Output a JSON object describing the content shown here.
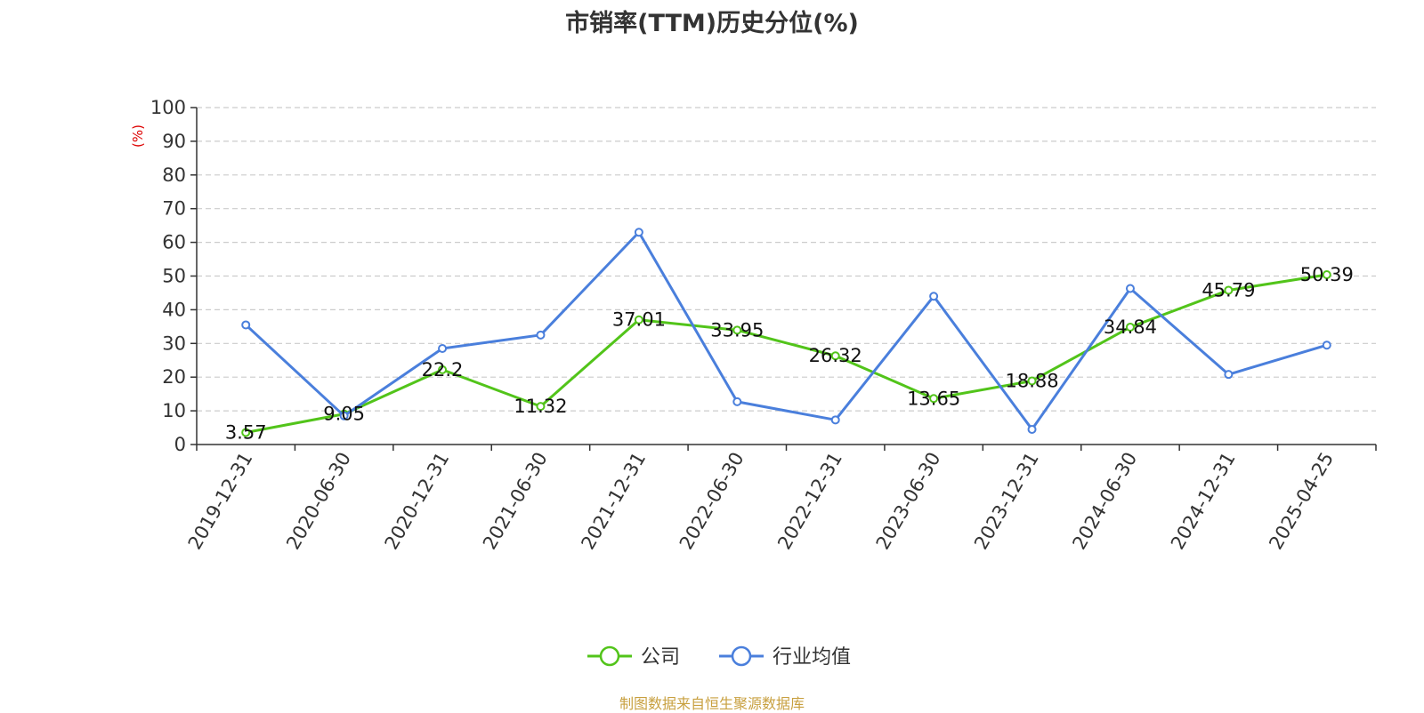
{
  "chart_data": {
    "type": "line",
    "title": "市销率(TTM)历史分位(%)",
    "ylabel": "(%)",
    "xlabel": "",
    "ylim": [
      0,
      100
    ],
    "yticks": [
      0,
      10,
      20,
      30,
      40,
      50,
      60,
      70,
      80,
      90,
      100
    ],
    "grid": true,
    "legend_position": "bottom",
    "categories": [
      "2019-12-31",
      "2020-06-30",
      "2020-12-31",
      "2021-06-30",
      "2021-12-31",
      "2022-06-30",
      "2022-12-31",
      "2023-06-30",
      "2023-12-31",
      "2024-06-30",
      "2024-12-31",
      "2025-04-25"
    ],
    "series": [
      {
        "name": "公司",
        "color": "#52c41a",
        "values": [
          3.57,
          9.05,
          22.2,
          11.32,
          37.01,
          33.95,
          26.32,
          13.65,
          18.88,
          34.84,
          45.79,
          50.39
        ],
        "show_labels": true
      },
      {
        "name": "行业均值",
        "color": "#4a7fdc",
        "values": [
          35.5,
          8.5,
          28.5,
          32.5,
          63,
          12.7,
          7.3,
          44,
          4.5,
          46.3,
          20.8,
          29.5
        ],
        "show_labels": false
      }
    ],
    "source": "制图数据来自恒生聚源数据库"
  }
}
